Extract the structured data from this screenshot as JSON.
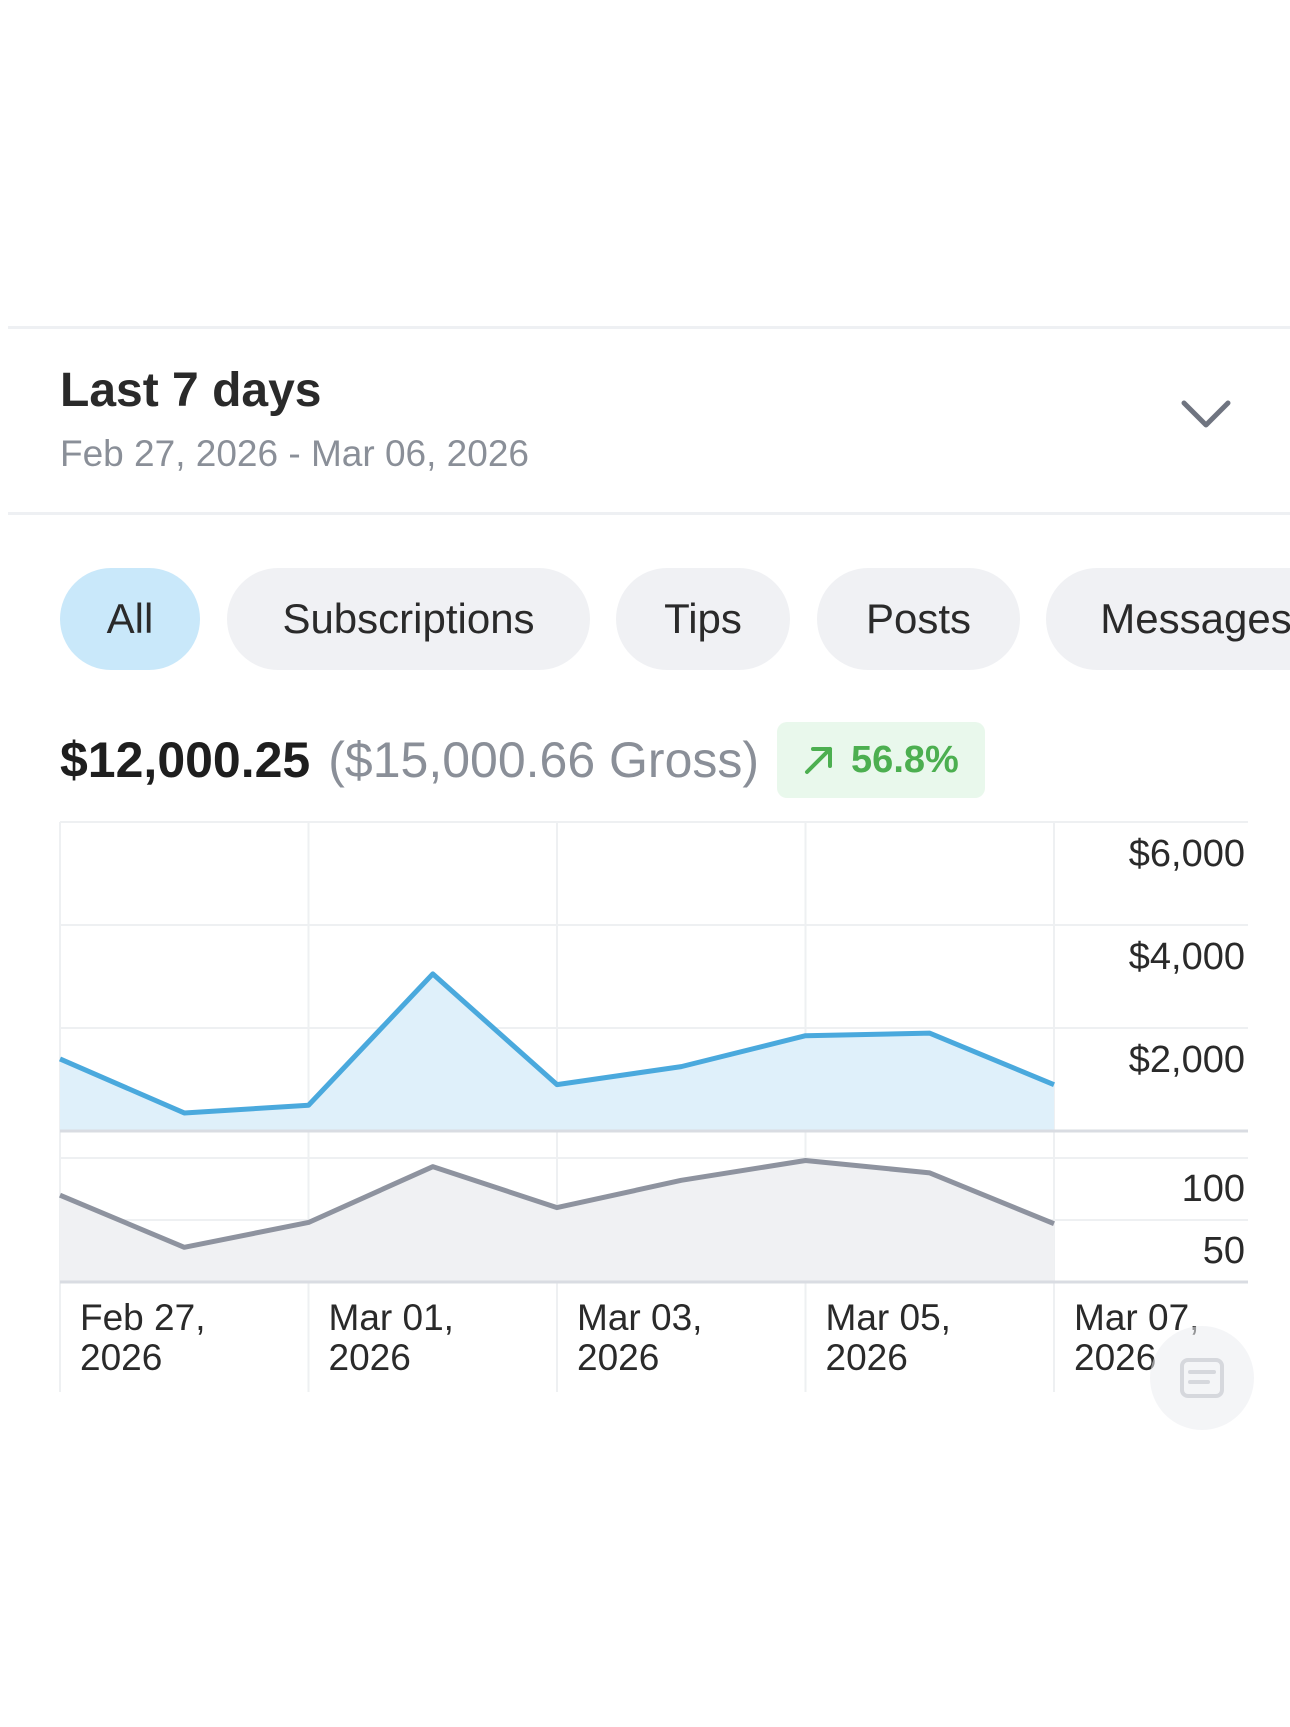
{
  "range": {
    "title": "Last 7 days",
    "dates": "Feb 27, 2026 - Mar 06, 2026"
  },
  "filters": [
    {
      "label": "All",
      "active": true
    },
    {
      "label": "Subscriptions",
      "active": false
    },
    {
      "label": "Tips",
      "active": false
    },
    {
      "label": "Posts",
      "active": false
    },
    {
      "label": "Messages",
      "active": false
    }
  ],
  "summary": {
    "net": "$12,000.25",
    "gross": "($15,000.66 Gross)",
    "change": "56.8%"
  },
  "colors": {
    "earnings_line": "#4aa9dd",
    "earnings_fill": "#dff0fa",
    "count_line": "#8e939f",
    "count_fill": "#f0f1f3",
    "trend_up": "#4caf50"
  },
  "chart_data": [
    {
      "type": "area",
      "x": [
        "2026-02-27",
        "2026-02-28",
        "2026-03-01",
        "2026-03-02",
        "2026-03-03",
        "2026-03-04",
        "2026-03-05",
        "2026-03-06",
        "2026-03-07"
      ],
      "values": [
        1400,
        350,
        500,
        3050,
        900,
        1250,
        1850,
        1900,
        900
      ],
      "ylim": [
        0,
        6000
      ],
      "yticks": [
        {
          "v": 2000,
          "label": "$2,000"
        },
        {
          "v": 4000,
          "label": "$4,000"
        },
        {
          "v": 6000,
          "label": "$6,000"
        }
      ],
      "xlim": [
        "2026-02-27",
        "2026-03-07"
      ],
      "grid": true
    },
    {
      "type": "area",
      "x": [
        "2026-02-27",
        "2026-02-28",
        "2026-03-01",
        "2026-03-02",
        "2026-03-03",
        "2026-03-04",
        "2026-03-05",
        "2026-03-06",
        "2026-03-07"
      ],
      "values": [
        70,
        28,
        48,
        93,
        60,
        82,
        98,
        88,
        47
      ],
      "ylim": [
        0,
        100
      ],
      "yticks": [
        {
          "v": 50,
          "label": "50"
        },
        {
          "v": 100,
          "label": "100"
        }
      ],
      "grid": true
    }
  ],
  "x_axis": {
    "ticks": [
      {
        "line1": "Feb 27,",
        "line2": "2026"
      },
      {
        "line1": "Mar 01,",
        "line2": "2026"
      },
      {
        "line1": "Mar 03,",
        "line2": "2026"
      },
      {
        "line1": "Mar 05,",
        "line2": "2026"
      },
      {
        "line1": "Mar 07,",
        "line2": "2026"
      }
    ]
  },
  "icons": {
    "dropdown": "chevron-down-icon",
    "trend": "arrow-up-right-icon",
    "fab": "list-filter-icon"
  }
}
